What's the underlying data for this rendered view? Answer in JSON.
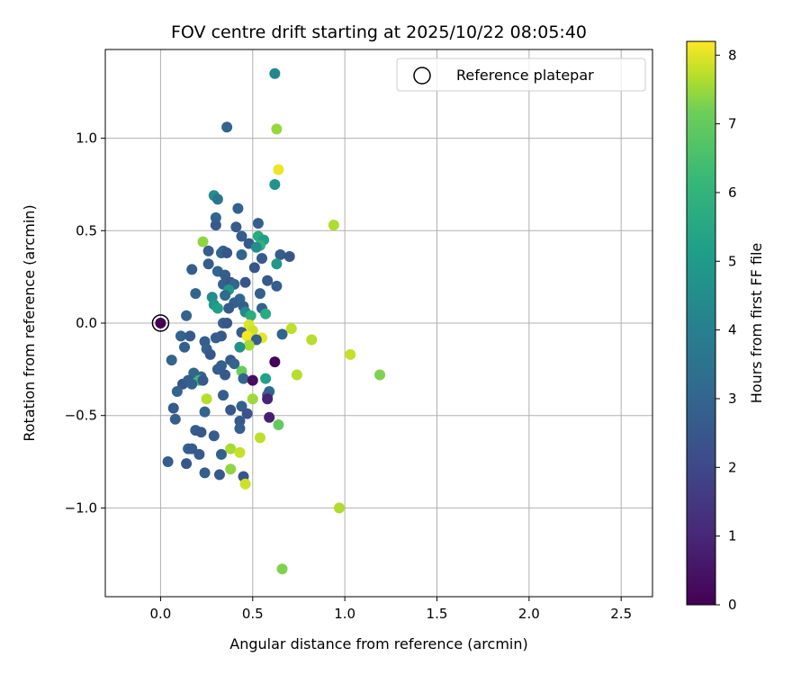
{
  "chart_data": {
    "type": "scatter",
    "title": "FOV centre drift starting at 2025/10/22 08:05:40",
    "xlabel": "Angular distance from reference (arcmin)",
    "ylabel": "Rotation from reference (arcmin)",
    "xlim": [
      -0.3,
      2.67
    ],
    "ylim": [
      -1.48,
      1.48
    ],
    "xticks": [
      0.0,
      0.5,
      1.0,
      1.5,
      2.0,
      2.5
    ],
    "xtick_labels": [
      "0.0",
      "0.5",
      "1.0",
      "1.5",
      "2.0",
      "2.5"
    ],
    "yticks": [
      -1.0,
      -0.5,
      0.0,
      0.5,
      1.0
    ],
    "ytick_labels": [
      "−1.0",
      "−0.5",
      "0.0",
      "0.5",
      "1.0"
    ],
    "grid": true,
    "colormap": "viridis",
    "colorbar": {
      "label": "Hours from first FF file",
      "range": [
        0,
        8.2
      ],
      "ticks": [
        0,
        1,
        2,
        3,
        4,
        5,
        6,
        7,
        8
      ],
      "tick_labels": [
        "0",
        "1",
        "2",
        "3",
        "4",
        "5",
        "6",
        "7",
        "8"
      ]
    },
    "legend": {
      "label": "Reference platepar",
      "position": "top-right"
    },
    "reference_point": {
      "x": 0.0,
      "y": 0.0,
      "c": 0.0
    },
    "points": [
      {
        "x": 0.62,
        "y": 1.35,
        "c": 3.8
      },
      {
        "x": 0.63,
        "y": 1.05,
        "c": 6.9
      },
      {
        "x": 0.36,
        "y": 1.06,
        "c": 2.6
      },
      {
        "x": 0.64,
        "y": 0.83,
        "c": 8.0
      },
      {
        "x": 0.62,
        "y": 0.75,
        "c": 4.2
      },
      {
        "x": 0.29,
        "y": 0.69,
        "c": 4.0
      },
      {
        "x": 0.31,
        "y": 0.67,
        "c": 3.2
      },
      {
        "x": 0.42,
        "y": 0.62,
        "c": 2.5
      },
      {
        "x": 0.3,
        "y": 0.57,
        "c": 2.6
      },
      {
        "x": 0.3,
        "y": 0.53,
        "c": 2.3
      },
      {
        "x": 0.53,
        "y": 0.54,
        "c": 2.5
      },
      {
        "x": 0.41,
        "y": 0.52,
        "c": 2.4
      },
      {
        "x": 0.94,
        "y": 0.53,
        "c": 7.2
      },
      {
        "x": 0.53,
        "y": 0.47,
        "c": 5.0
      },
      {
        "x": 0.56,
        "y": 0.45,
        "c": 4.6
      },
      {
        "x": 0.44,
        "y": 0.47,
        "c": 2.4
      },
      {
        "x": 0.23,
        "y": 0.44,
        "c": 6.8
      },
      {
        "x": 0.48,
        "y": 0.43,
        "c": 2.3
      },
      {
        "x": 0.54,
        "y": 0.42,
        "c": 5.3
      },
      {
        "x": 0.52,
        "y": 0.41,
        "c": 4.0
      },
      {
        "x": 0.26,
        "y": 0.39,
        "c": 2.4
      },
      {
        "x": 0.34,
        "y": 0.39,
        "c": 2.5
      },
      {
        "x": 0.33,
        "y": 0.38,
        "c": 2.7
      },
      {
        "x": 0.36,
        "y": 0.38,
        "c": 2.2
      },
      {
        "x": 0.44,
        "y": 0.37,
        "c": 2.6
      },
      {
        "x": 0.65,
        "y": 0.37,
        "c": 2.4
      },
      {
        "x": 0.7,
        "y": 0.36,
        "c": 2.2
      },
      {
        "x": 0.55,
        "y": 0.35,
        "c": 2.3
      },
      {
        "x": 0.63,
        "y": 0.32,
        "c": 4.4
      },
      {
        "x": 0.26,
        "y": 0.32,
        "c": 2.4
      },
      {
        "x": 0.51,
        "y": 0.3,
        "c": 2.2
      },
      {
        "x": 0.17,
        "y": 0.29,
        "c": 2.4
      },
      {
        "x": 0.31,
        "y": 0.28,
        "c": 2.6
      },
      {
        "x": 0.35,
        "y": 0.26,
        "c": 2.4
      },
      {
        "x": 0.58,
        "y": 0.23,
        "c": 2.3
      },
      {
        "x": 0.34,
        "y": 0.21,
        "c": 2.5
      },
      {
        "x": 0.38,
        "y": 0.22,
        "c": 2.2
      },
      {
        "x": 0.4,
        "y": 0.21,
        "c": 2.6
      },
      {
        "x": 0.46,
        "y": 0.22,
        "c": 2.1
      },
      {
        "x": 0.63,
        "y": 0.2,
        "c": 2.4
      },
      {
        "x": 0.37,
        "y": 0.18,
        "c": 4.3
      },
      {
        "x": 0.35,
        "y": 0.15,
        "c": 2.8
      },
      {
        "x": 0.54,
        "y": 0.16,
        "c": 2.5
      },
      {
        "x": 0.28,
        "y": 0.14,
        "c": 4.0
      },
      {
        "x": 0.19,
        "y": 0.16,
        "c": 2.6
      },
      {
        "x": 0.43,
        "y": 0.13,
        "c": 2.7
      },
      {
        "x": 0.4,
        "y": 0.11,
        "c": 2.5
      },
      {
        "x": 0.45,
        "y": 0.09,
        "c": 2.4
      },
      {
        "x": 0.29,
        "y": 0.1,
        "c": 4.3
      },
      {
        "x": 0.31,
        "y": 0.08,
        "c": 4.6
      },
      {
        "x": 0.37,
        "y": 0.08,
        "c": 2.3
      },
      {
        "x": 0.55,
        "y": 0.08,
        "c": 2.5
      },
      {
        "x": 0.46,
        "y": 0.06,
        "c": 3.9
      },
      {
        "x": 0.49,
        "y": 0.04,
        "c": 5.1
      },
      {
        "x": 0.57,
        "y": 0.05,
        "c": 5.0
      },
      {
        "x": 0.14,
        "y": 0.04,
        "c": 2.6
      },
      {
        "x": 0.34,
        "y": 0.0,
        "c": 2.5
      },
      {
        "x": 0.36,
        "y": 0.0,
        "c": 2.2
      },
      {
        "x": 0.48,
        "y": -0.01,
        "c": 7.8
      },
      {
        "x": 0.5,
        "y": -0.04,
        "c": 7.6
      },
      {
        "x": 0.44,
        "y": -0.05,
        "c": 2.4
      },
      {
        "x": 0.66,
        "y": -0.06,
        "c": 2.6
      },
      {
        "x": 0.71,
        "y": -0.03,
        "c": 7.4
      },
      {
        "x": 0.11,
        "y": -0.07,
        "c": 2.6
      },
      {
        "x": 0.16,
        "y": -0.07,
        "c": 2.3
      },
      {
        "x": 0.33,
        "y": -0.07,
        "c": 2.2
      },
      {
        "x": 0.3,
        "y": -0.08,
        "c": 2.4
      },
      {
        "x": 0.47,
        "y": -0.07,
        "c": 8.1
      },
      {
        "x": 0.55,
        "y": -0.08,
        "c": 7.9
      },
      {
        "x": 0.52,
        "y": -0.09,
        "c": 2.5
      },
      {
        "x": 0.82,
        "y": -0.09,
        "c": 7.3
      },
      {
        "x": 0.24,
        "y": -0.1,
        "c": 2.4
      },
      {
        "x": 0.48,
        "y": -0.12,
        "c": 7.1
      },
      {
        "x": 0.13,
        "y": -0.13,
        "c": 2.5
      },
      {
        "x": 0.43,
        "y": -0.13,
        "c": 4.2
      },
      {
        "x": 0.25,
        "y": -0.14,
        "c": 2.5
      },
      {
        "x": 1.03,
        "y": -0.17,
        "c": 7.5
      },
      {
        "x": 0.27,
        "y": -0.17,
        "c": 2.2
      },
      {
        "x": 0.06,
        "y": -0.2,
        "c": 2.6
      },
      {
        "x": 0.38,
        "y": -0.2,
        "c": 2.3
      },
      {
        "x": 0.4,
        "y": -0.22,
        "c": 2.6
      },
      {
        "x": 0.62,
        "y": -0.21,
        "c": 0.1
      },
      {
        "x": 0.33,
        "y": -0.23,
        "c": 2.5
      },
      {
        "x": 0.31,
        "y": -0.25,
        "c": 2.4
      },
      {
        "x": 0.44,
        "y": -0.26,
        "c": 6.3
      },
      {
        "x": 0.18,
        "y": -0.27,
        "c": 2.7
      },
      {
        "x": 0.35,
        "y": -0.28,
        "c": 2.3
      },
      {
        "x": 0.74,
        "y": -0.28,
        "c": 7.3
      },
      {
        "x": 1.19,
        "y": -0.28,
        "c": 6.6
      },
      {
        "x": 0.22,
        "y": -0.29,
        "c": 2.6
      },
      {
        "x": 0.21,
        "y": -0.31,
        "c": 5.6
      },
      {
        "x": 0.23,
        "y": -0.31,
        "c": 2.3
      },
      {
        "x": 0.45,
        "y": -0.3,
        "c": 2.7
      },
      {
        "x": 0.57,
        "y": -0.3,
        "c": 4.7
      },
      {
        "x": 0.5,
        "y": -0.31,
        "c": 0.3
      },
      {
        "x": 0.12,
        "y": -0.33,
        "c": 2.2
      },
      {
        "x": 0.15,
        "y": -0.31,
        "c": 2.4
      },
      {
        "x": 0.17,
        "y": -0.33,
        "c": 2.5
      },
      {
        "x": 0.09,
        "y": -0.37,
        "c": 2.6
      },
      {
        "x": 0.59,
        "y": -0.37,
        "c": 2.9
      },
      {
        "x": 0.58,
        "y": -0.39,
        "c": 2.5
      },
      {
        "x": 0.34,
        "y": -0.39,
        "c": 2.4
      },
      {
        "x": 0.58,
        "y": -0.41,
        "c": 0.8
      },
      {
        "x": 0.5,
        "y": -0.41,
        "c": 7.0
      },
      {
        "x": 0.25,
        "y": -0.41,
        "c": 7.3
      },
      {
        "x": 0.07,
        "y": -0.46,
        "c": 2.3
      },
      {
        "x": 0.44,
        "y": -0.45,
        "c": 2.5
      },
      {
        "x": 0.38,
        "y": -0.47,
        "c": 2.2
      },
      {
        "x": 0.24,
        "y": -0.48,
        "c": 2.6
      },
      {
        "x": 0.47,
        "y": -0.49,
        "c": 2.1
      },
      {
        "x": 0.59,
        "y": -0.51,
        "c": 0.7
      },
      {
        "x": 0.08,
        "y": -0.52,
        "c": 2.4
      },
      {
        "x": 0.43,
        "y": -0.53,
        "c": 2.3
      },
      {
        "x": 0.64,
        "y": -0.55,
        "c": 6.2
      },
      {
        "x": 0.43,
        "y": -0.57,
        "c": 2.5
      },
      {
        "x": 0.19,
        "y": -0.58,
        "c": 2.4
      },
      {
        "x": 0.22,
        "y": -0.59,
        "c": 2.2
      },
      {
        "x": 0.29,
        "y": -0.61,
        "c": 2.4
      },
      {
        "x": 0.54,
        "y": -0.62,
        "c": 7.4
      },
      {
        "x": 0.15,
        "y": -0.68,
        "c": 2.5
      },
      {
        "x": 0.17,
        "y": -0.68,
        "c": 2.3
      },
      {
        "x": 0.38,
        "y": -0.68,
        "c": 7.1
      },
      {
        "x": 0.21,
        "y": -0.71,
        "c": 2.3
      },
      {
        "x": 0.33,
        "y": -0.71,
        "c": 2.5
      },
      {
        "x": 0.43,
        "y": -0.7,
        "c": 7.5
      },
      {
        "x": 0.04,
        "y": -0.75,
        "c": 2.4
      },
      {
        "x": 0.14,
        "y": -0.76,
        "c": 2.2
      },
      {
        "x": 0.38,
        "y": -0.79,
        "c": 6.8
      },
      {
        "x": 0.24,
        "y": -0.81,
        "c": 2.4
      },
      {
        "x": 0.32,
        "y": -0.82,
        "c": 2.3
      },
      {
        "x": 0.45,
        "y": -0.83,
        "c": 2.2
      },
      {
        "x": 0.46,
        "y": -0.87,
        "c": 7.6
      },
      {
        "x": 0.97,
        "y": -1.0,
        "c": 7.2
      },
      {
        "x": 0.66,
        "y": -1.33,
        "c": 6.6
      }
    ]
  }
}
